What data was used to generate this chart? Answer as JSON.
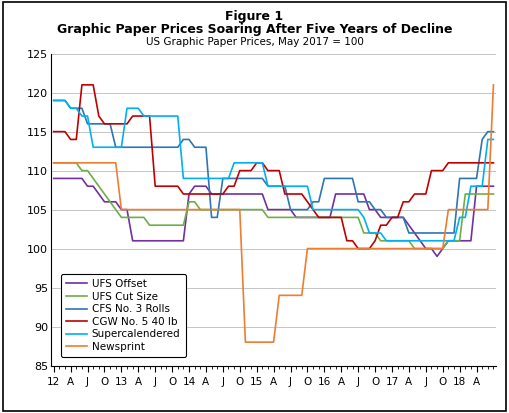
{
  "title1": "Figure 1",
  "title2": "Graphic Paper Prices Soaring After Five Years of Decline",
  "title3": "US Graphic Paper Prices, May 2017 = 100",
  "ylim": [
    85,
    125
  ],
  "yticks": [
    85,
    90,
    95,
    100,
    105,
    110,
    115,
    120,
    125
  ],
  "tick_positions": [
    0,
    3,
    6,
    9,
    12,
    15,
    18,
    21,
    24,
    27,
    30,
    33,
    36,
    39,
    42,
    45,
    48,
    51,
    54,
    57,
    60,
    63,
    66,
    69,
    72,
    75
  ],
  "tick_labels": [
    "12",
    "A",
    "J",
    "O",
    "13",
    "A",
    "J",
    "O",
    "14",
    "A",
    "J",
    "O",
    "15",
    "A",
    "J",
    "O",
    "16",
    "A",
    "J",
    "O",
    "17",
    "A",
    "J",
    "O",
    "18",
    "A"
  ],
  "series": [
    {
      "name": "UFS Offset",
      "color": "#7030A0",
      "y": [
        109,
        109,
        109,
        109,
        109,
        109,
        108,
        108,
        107,
        106,
        106,
        106,
        105,
        105,
        101,
        101,
        101,
        101,
        101,
        101,
        101,
        101,
        101,
        101,
        107,
        108,
        108,
        108,
        107,
        107,
        107,
        107,
        107,
        107,
        107,
        107,
        107,
        107,
        105,
        105,
        105,
        105,
        105,
        104,
        104,
        104,
        104,
        104,
        104,
        104,
        107,
        107,
        107,
        107,
        107,
        107,
        105,
        105,
        104,
        104,
        104,
        104,
        104,
        103,
        102,
        101,
        100,
        100,
        99,
        100,
        101,
        101,
        101,
        101,
        101,
        108,
        108,
        108,
        108
      ]
    },
    {
      "name": "UFS Cut Size",
      "color": "#70AD47",
      "y": [
        111,
        111,
        111,
        111,
        111,
        110,
        110,
        109,
        108,
        107,
        106,
        105,
        104,
        104,
        104,
        104,
        104,
        103,
        103,
        103,
        103,
        103,
        103,
        103,
        106,
        106,
        105,
        105,
        105,
        105,
        105,
        105,
        105,
        105,
        105,
        105,
        105,
        105,
        104,
        104,
        104,
        104,
        104,
        104,
        104,
        104,
        104,
        104,
        104,
        104,
        104,
        104,
        104,
        104,
        104,
        102,
        102,
        102,
        101,
        101,
        101,
        101,
        101,
        101,
        100,
        100,
        100,
        100,
        100,
        100,
        101,
        101,
        101,
        107,
        107,
        107,
        107,
        107,
        107
      ]
    },
    {
      "name": "CFS No. 3 Rolls",
      "color": "#2E75B6",
      "y": [
        119,
        119,
        119,
        118,
        118,
        118,
        116,
        116,
        116,
        116,
        116,
        113,
        113,
        113,
        113,
        113,
        113,
        113,
        113,
        113,
        113,
        113,
        113,
        114,
        114,
        113,
        113,
        113,
        104,
        104,
        109,
        109,
        109,
        109,
        109,
        109,
        109,
        109,
        108,
        108,
        108,
        108,
        105,
        105,
        105,
        105,
        106,
        106,
        109,
        109,
        109,
        109,
        109,
        109,
        106,
        106,
        106,
        105,
        105,
        104,
        104,
        104,
        104,
        102,
        102,
        102,
        102,
        102,
        102,
        102,
        102,
        102,
        109,
        109,
        109,
        109,
        114,
        115,
        115
      ]
    },
    {
      "name": "CGW No. 5 40 lb",
      "color": "#C00000",
      "y": [
        115,
        115,
        115,
        114,
        114,
        121,
        121,
        121,
        117,
        116,
        116,
        116,
        116,
        116,
        117,
        117,
        117,
        117,
        108,
        108,
        108,
        108,
        108,
        107,
        107,
        107,
        107,
        107,
        107,
        107,
        107,
        108,
        108,
        110,
        110,
        110,
        111,
        111,
        110,
        110,
        110,
        107,
        107,
        107,
        107,
        106,
        105,
        104,
        104,
        104,
        104,
        104,
        101,
        101,
        100,
        100,
        100,
        101,
        103,
        103,
        104,
        104,
        106,
        106,
        107,
        107,
        107,
        110,
        110,
        110,
        111,
        111,
        111,
        111,
        111,
        111,
        111,
        111,
        111
      ]
    },
    {
      "name": "Supercalendered",
      "color": "#00B0F0",
      "y": [
        119,
        119,
        119,
        118,
        118,
        117,
        117,
        113,
        113,
        113,
        113,
        113,
        113,
        118,
        118,
        118,
        117,
        117,
        117,
        117,
        117,
        117,
        117,
        109,
        109,
        109,
        109,
        109,
        109,
        109,
        109,
        109,
        111,
        111,
        111,
        111,
        111,
        111,
        108,
        108,
        108,
        108,
        108,
        108,
        108,
        108,
        105,
        105,
        105,
        105,
        105,
        105,
        105,
        105,
        105,
        104,
        102,
        102,
        102,
        101,
        101,
        101,
        101,
        101,
        101,
        101,
        101,
        101,
        101,
        101,
        101,
        101,
        104,
        104,
        108,
        108,
        108,
        114,
        114
      ]
    },
    {
      "name": "Newsprint",
      "color": "#ED7D31",
      "y": [
        111,
        111,
        111,
        111,
        111,
        111,
        111,
        111,
        111,
        111,
        111,
        111,
        105,
        105,
        105,
        105,
        105,
        105,
        105,
        105,
        105,
        105,
        105,
        105,
        105,
        105,
        105,
        105,
        105,
        105,
        105,
        105,
        105,
        105,
        88,
        88,
        88,
        88,
        88,
        88,
        94,
        94,
        94,
        94,
        94,
        100,
        100,
        100,
        100,
        100,
        100,
        100,
        100,
        100,
        100,
        100,
        100,
        100,
        100,
        100,
        100,
        100,
        100,
        100,
        100,
        100,
        100,
        100,
        100,
        100,
        105,
        105,
        105,
        105,
        105,
        105,
        105,
        105,
        121
      ]
    }
  ]
}
